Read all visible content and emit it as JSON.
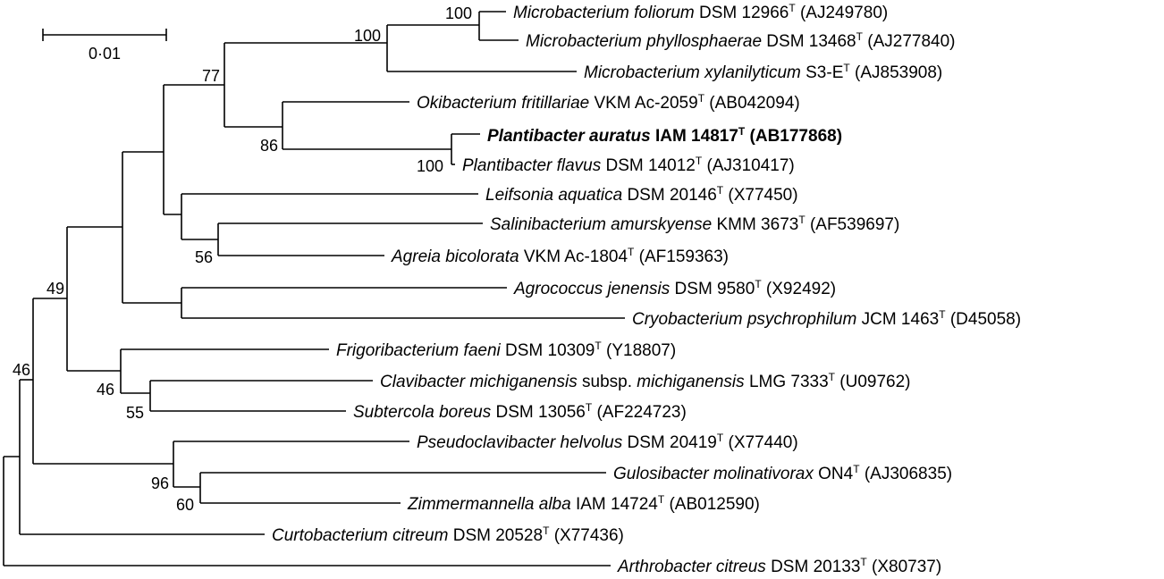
{
  "scale_bar": {
    "label": "0·01"
  },
  "taxa": [
    {
      "id": "foliorum",
      "italic": "Microbacterium foliorum",
      "strain": " DSM 12966",
      "sup": "T",
      "acc": " (AJ249780)",
      "bold": false
    },
    {
      "id": "phyllosphaerae",
      "italic": "Microbacterium phyllosphaerae",
      "strain": " DSM 13468",
      "sup": "T",
      "acc": " (AJ277840)",
      "bold": false
    },
    {
      "id": "xylanilyticum",
      "italic": "Microbacterium xylanilyticum",
      "strain": " S3-E",
      "sup": "T",
      "acc": " (AJ853908)",
      "bold": false
    },
    {
      "id": "okibacterium",
      "italic": "Okibacterium fritillariae",
      "strain": " VKM Ac-2059",
      "sup": "T",
      "acc": " (AB042094)",
      "bold": false
    },
    {
      "id": "auratus",
      "italic": "Plantibacter auratus",
      "strain": " IAM 14817",
      "sup": "T",
      "acc": " (AB177868)",
      "bold": true
    },
    {
      "id": "flavus",
      "italic": "Plantibacter flavus",
      "strain": " DSM 14012",
      "sup": "T",
      "acc": " (AJ310417)",
      "bold": false
    },
    {
      "id": "leifsonia",
      "italic": "Leifsonia aquatica",
      "strain": " DSM 20146",
      "sup": "T",
      "acc": " (X77450)",
      "bold": false
    },
    {
      "id": "salinibacterium",
      "italic": "Salinibacterium amurskyense",
      "strain": " KMM 3673",
      "sup": "T",
      "acc": " (AF539697)",
      "bold": false
    },
    {
      "id": "agreia",
      "italic": "Agreia bicolorata",
      "strain": " VKM Ac-1804",
      "sup": "T",
      "acc": " (AF159363)",
      "bold": false
    },
    {
      "id": "agrococcus",
      "italic": "Agrococcus jenensis",
      "strain": " DSM 9580",
      "sup": "T",
      "acc": " (X92492)",
      "bold": false
    },
    {
      "id": "cryobacterium",
      "italic": "Cryobacterium psychrophilum",
      "strain": " JCM 1463",
      "sup": "T",
      "acc": " (D45058)",
      "bold": false
    },
    {
      "id": "frigoribacterium",
      "italic": "Frigoribacterium faeni",
      "strain": " DSM 10309",
      "sup": "T",
      "acc": " (Y18807)",
      "bold": false
    },
    {
      "id": "clavibacter",
      "italic": "Clavibacter michiganensis",
      "strain": " subsp. ",
      "italic2": "michiganensis",
      "strain2": " LMG 7333",
      "sup": "T",
      "acc": " (U09762)",
      "bold": false
    },
    {
      "id": "subtercola",
      "italic": "Subtercola boreus",
      "strain": " DSM 13056",
      "sup": "T",
      "acc": " (AF224723)",
      "bold": false
    },
    {
      "id": "pseudoclavibacter",
      "italic": "Pseudoclavibacter helvolus",
      "strain": " DSM 20419",
      "sup": "T",
      "acc": " (X77440)",
      "bold": false
    },
    {
      "id": "gulosibacter",
      "italic": "Gulosibacter molinativorax",
      "strain": " ON4",
      "sup": "T",
      "acc": " (AJ306835)",
      "bold": false
    },
    {
      "id": "zimmermannella",
      "italic": "Zimmermannella alba",
      "strain": " IAM 14724",
      "sup": "T",
      "acc": " (AB012590)",
      "bold": false
    },
    {
      "id": "curtobacterium",
      "italic": "Curtobacterium citreum",
      "strain": " DSM 20528",
      "sup": "T",
      "acc": " (X77436)",
      "bold": false
    },
    {
      "id": "arthrobacter",
      "italic": "Arthrobacter citreus",
      "strain": " DSM 20133",
      "sup": "T",
      "acc": " (X80737)",
      "bold": false
    }
  ],
  "bootstrap": [
    {
      "id": "n-foliorum-phyllo",
      "value": "100"
    },
    {
      "id": "n-microbacterium",
      "value": "100"
    },
    {
      "id": "n-77",
      "value": "77"
    },
    {
      "id": "n-86",
      "value": "86"
    },
    {
      "id": "n-plantibacter",
      "value": "100"
    },
    {
      "id": "n-56",
      "value": "56"
    },
    {
      "id": "n-49",
      "value": "49"
    },
    {
      "id": "n-46a",
      "value": "46"
    },
    {
      "id": "n-55",
      "value": "55"
    },
    {
      "id": "n-96",
      "value": "96"
    },
    {
      "id": "n-60",
      "value": "60"
    },
    {
      "id": "n-46b",
      "value": "46"
    }
  ]
}
